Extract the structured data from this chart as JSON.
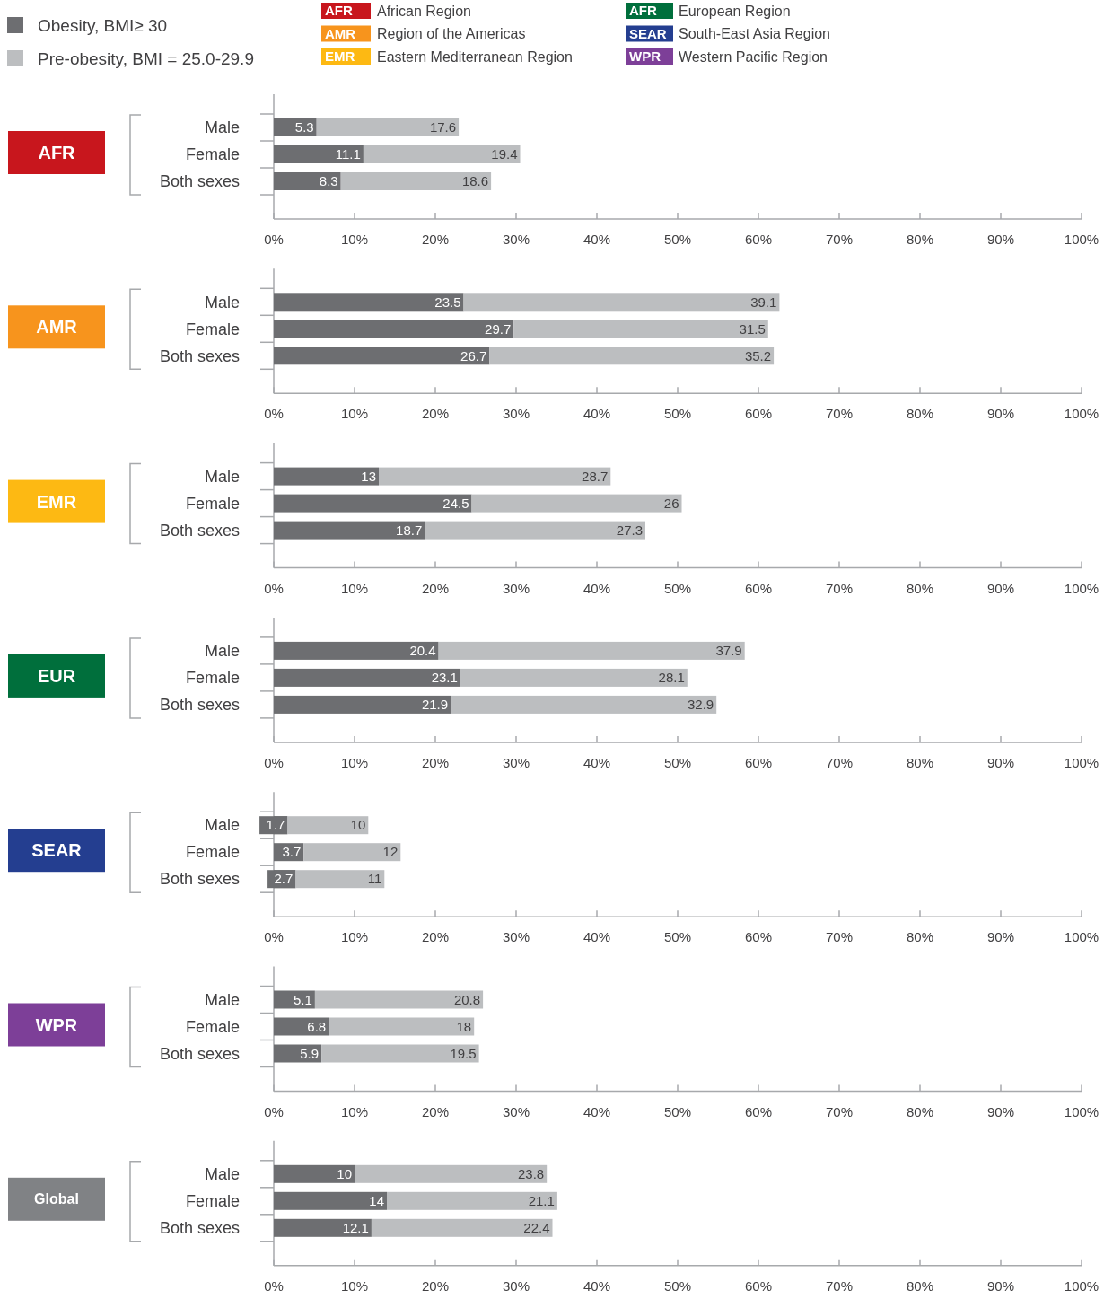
{
  "chart_data": [
    {
      "type": "bar",
      "orientation": "horizontal",
      "stacked": true,
      "title": "AFR",
      "legend": "top left",
      "data_labels": true,
      "categories": [
        "Male",
        "Female",
        "Both sexes"
      ],
      "xlim": [
        0,
        100
      ],
      "xticks": [
        {
          "value": 0,
          "label": "0%"
        },
        {
          "value": 10,
          "label": "10%"
        },
        {
          "value": 20,
          "label": "20%"
        },
        {
          "value": 30,
          "label": "30%"
        },
        {
          "value": 40,
          "label": "40%"
        },
        {
          "value": 50,
          "label": "50%"
        },
        {
          "value": 60,
          "label": "60%"
        },
        {
          "value": 70,
          "label": "70%"
        },
        {
          "value": 80,
          "label": "80%"
        },
        {
          "value": 90,
          "label": "90%"
        },
        {
          "value": 100,
          "label": "100%"
        }
      ],
      "annotations": [
        "AFR",
        "African Region",
        "AMR",
        "Region of the Americas",
        "EMR",
        "Eastern Mediterranean Region",
        "AFR",
        "European Region",
        "SEAR",
        "South-East Asia Region",
        "WPR",
        "Western Pacific Region"
      ],
      "series": [
        {
          "name": "Obesity, BMI≥ 30",
          "color": "#6d6e71",
          "values": [
            5.3,
            11.1,
            8.3
          ]
        },
        {
          "name": "Pre-obesity, BMI = 25.0-29.9",
          "color": "#bcbec0",
          "values": [
            17.6,
            19.4,
            18.6
          ]
        }
      ]
    },
    {
      "type": "bar",
      "orientation": "horizontal",
      "stacked": true,
      "title": "AMR",
      "data_labels": true,
      "categories": [
        "Male",
        "Female",
        "Both sexes"
      ],
      "xlim": [
        0,
        100
      ],
      "xticks": [
        {
          "value": 0,
          "label": "0%"
        },
        {
          "value": 10,
          "label": "10%"
        },
        {
          "value": 20,
          "label": "20%"
        },
        {
          "value": 30,
          "label": "30%"
        },
        {
          "value": 40,
          "label": "40%"
        },
        {
          "value": 50,
          "label": "50%"
        },
        {
          "value": 60,
          "label": "60%"
        },
        {
          "value": 70,
          "label": "70%"
        },
        {
          "value": 80,
          "label": "80%"
        },
        {
          "value": 90,
          "label": "90%"
        },
        {
          "value": 100,
          "label": "100%"
        }
      ],
      "series": [
        {
          "color": "#6d6e71",
          "values": [
            23.5,
            29.7,
            26.7
          ]
        },
        {
          "color": "#bcbec0",
          "values": [
            39.1,
            31.5,
            35.2
          ]
        }
      ]
    },
    {
      "type": "bar",
      "orientation": "horizontal",
      "stacked": true,
      "title": "EMR",
      "data_labels": true,
      "categories": [
        "Male",
        "Female",
        "Both sexes"
      ],
      "xlim": [
        0,
        100
      ],
      "xticks": [
        {
          "value": 0,
          "label": "0%"
        },
        {
          "value": 10,
          "label": "10%"
        },
        {
          "value": 20,
          "label": "20%"
        },
        {
          "value": 30,
          "label": "30%"
        },
        {
          "value": 40,
          "label": "40%"
        },
        {
          "value": 50,
          "label": "50%"
        },
        {
          "value": 60,
          "label": "60%"
        },
        {
          "value": 70,
          "label": "70%"
        },
        {
          "value": 80,
          "label": "80%"
        },
        {
          "value": 90,
          "label": "90%"
        },
        {
          "value": 100,
          "label": "100%"
        }
      ],
      "series": [
        {
          "color": "#6d6e71",
          "values": [
            13,
            24.5,
            18.7
          ]
        },
        {
          "color": "#bcbec0",
          "values": [
            28.7,
            26,
            27.3
          ]
        }
      ]
    },
    {
      "type": "bar",
      "orientation": "horizontal",
      "stacked": true,
      "title": "EUR",
      "data_labels": true,
      "categories": [
        "Male",
        "Female",
        "Both sexes"
      ],
      "xlim": [
        0,
        100
      ],
      "xticks": [
        {
          "value": 0,
          "label": "0%"
        },
        {
          "value": 10,
          "label": "10%"
        },
        {
          "value": 20,
          "label": "20%"
        },
        {
          "value": 30,
          "label": "30%"
        },
        {
          "value": 40,
          "label": "40%"
        },
        {
          "value": 50,
          "label": "50%"
        },
        {
          "value": 60,
          "label": "60%"
        },
        {
          "value": 70,
          "label": "70%"
        },
        {
          "value": 80,
          "label": "80%"
        },
        {
          "value": 90,
          "label": "90%"
        },
        {
          "value": 100,
          "label": "100%"
        }
      ],
      "series": [
        {
          "color": "#6d6e71",
          "values": [
            20.4,
            23.1,
            21.9
          ]
        },
        {
          "color": "#bcbec0",
          "values": [
            37.9,
            28.1,
            32.9
          ]
        }
      ]
    },
    {
      "type": "bar",
      "orientation": "horizontal",
      "stacked": true,
      "title": "SEAR",
      "data_labels": true,
      "categories": [
        "Male",
        "Female",
        "Both sexes"
      ],
      "xlim": [
        0,
        100
      ],
      "xticks": [
        {
          "value": 0,
          "label": "0%"
        },
        {
          "value": 10,
          "label": "10%"
        },
        {
          "value": 20,
          "label": "20%"
        },
        {
          "value": 30,
          "label": "30%"
        },
        {
          "value": 40,
          "label": "40%"
        },
        {
          "value": 50,
          "label": "50%"
        },
        {
          "value": 60,
          "label": "60%"
        },
        {
          "value": 70,
          "label": "70%"
        },
        {
          "value": 80,
          "label": "80%"
        },
        {
          "value": 90,
          "label": "90%"
        },
        {
          "value": 100,
          "label": "100%"
        }
      ],
      "series": [
        {
          "color": "#6d6e71",
          "values": [
            1.7,
            3.7,
            2.7
          ]
        },
        {
          "color": "#bcbec0",
          "values": [
            10,
            12,
            11
          ]
        }
      ]
    },
    {
      "type": "bar",
      "orientation": "horizontal",
      "stacked": true,
      "title": "WPR",
      "data_labels": true,
      "categories": [
        "Male",
        "Female",
        "Both sexes"
      ],
      "xlim": [
        0,
        100
      ],
      "xticks": [
        {
          "value": 0,
          "label": "0%"
        },
        {
          "value": 10,
          "label": "10%"
        },
        {
          "value": 20,
          "label": "20%"
        },
        {
          "value": 30,
          "label": "30%"
        },
        {
          "value": 40,
          "label": "40%"
        },
        {
          "value": 50,
          "label": "50%"
        },
        {
          "value": 60,
          "label": "60%"
        },
        {
          "value": 70,
          "label": "70%"
        },
        {
          "value": 80,
          "label": "80%"
        },
        {
          "value": 90,
          "label": "90%"
        },
        {
          "value": 100,
          "label": "100%"
        }
      ],
      "series": [
        {
          "color": "#6d6e71",
          "values": [
            5.1,
            6.8,
            5.9
          ]
        },
        {
          "color": "#bcbec0",
          "values": [
            20.8,
            18,
            19.5
          ]
        }
      ]
    },
    {
      "type": "bar",
      "orientation": "horizontal",
      "stacked": true,
      "title": "Global",
      "data_labels": true,
      "categories": [
        "Male",
        "Female",
        "Both sexes"
      ],
      "xlim": [
        0,
        100
      ],
      "xticks": [
        {
          "value": 0,
          "label": "0%"
        },
        {
          "value": 10,
          "label": "10%"
        },
        {
          "value": 20,
          "label": "20%"
        },
        {
          "value": 30,
          "label": "30%"
        },
        {
          "value": 40,
          "label": "40%"
        },
        {
          "value": 50,
          "label": "50%"
        },
        {
          "value": 60,
          "label": "60%"
        },
        {
          "value": 70,
          "label": "70%"
        },
        {
          "value": 80,
          "label": "80%"
        },
        {
          "value": 90,
          "label": "90%"
        },
        {
          "value": 100,
          "label": "100%"
        }
      ],
      "series": [
        {
          "color": "#6d6e71",
          "values": [
            10,
            14,
            12.1
          ]
        },
        {
          "color": "#bcbec0",
          "values": [
            23.8,
            21.1,
            22.4
          ]
        }
      ]
    }
  ]
}
